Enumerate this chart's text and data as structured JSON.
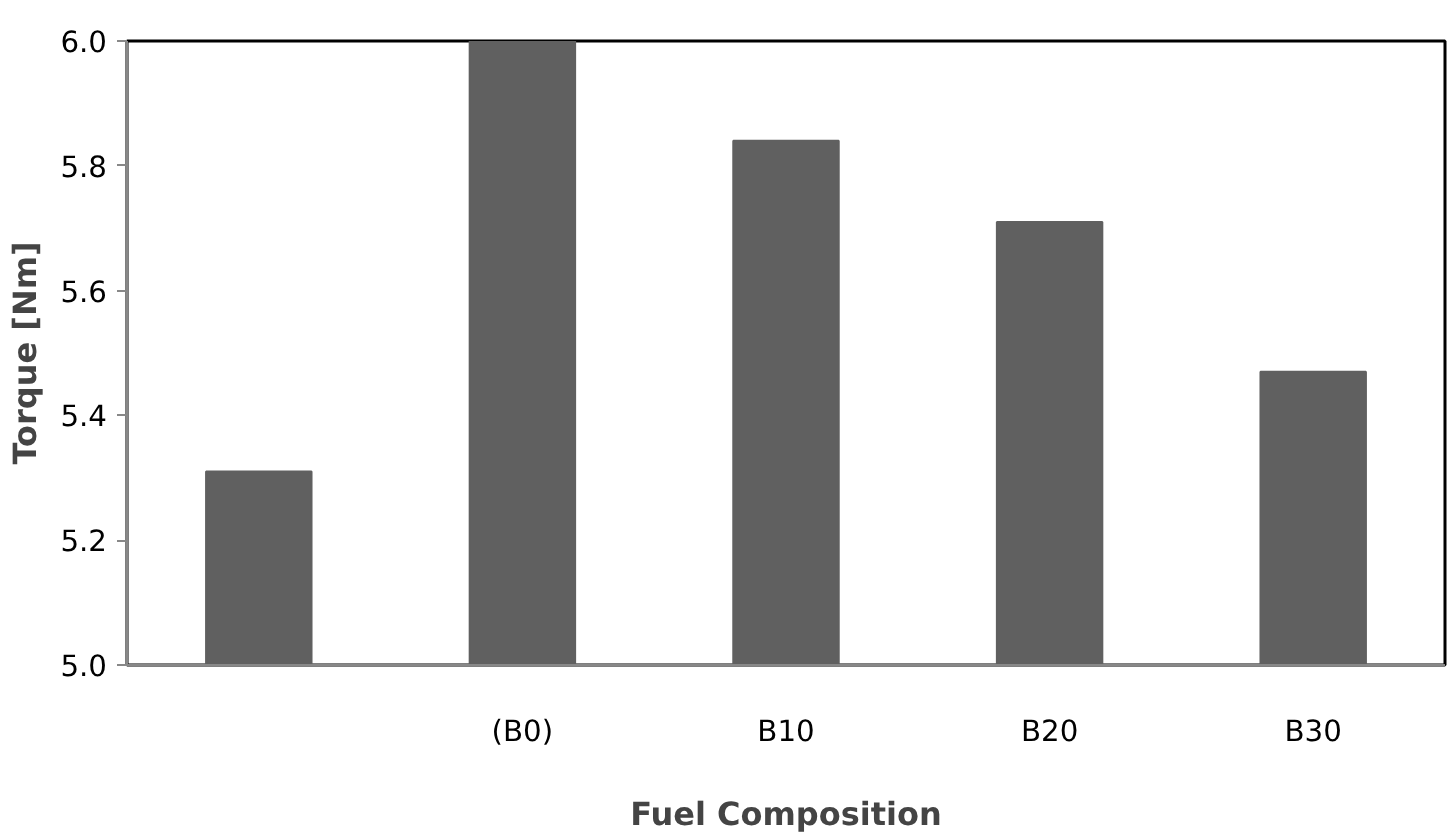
{
  "chart_data": {
    "type": "bar",
    "xlabel": "Fuel Composition",
    "ylabel": "Torque [Nm]",
    "categories": [
      null,
      "(B0)",
      "B10",
      "B20",
      "B30"
    ],
    "values": [
      5.31,
      6.0,
      5.84,
      5.71,
      5.47
    ],
    "color": "#606060",
    "ylim": [
      5.0,
      6.0
    ],
    "yticks": [
      {
        "value": 5.0,
        "label": "5.0"
      },
      {
        "value": 5.2,
        "label": "5.2"
      },
      {
        "value": 5.4,
        "label": "5.4"
      },
      {
        "value": 5.6,
        "label": "5.6"
      },
      {
        "value": 5.8,
        "label": "5.8"
      },
      {
        "value": 6.0,
        "label": "6.0"
      }
    ],
    "grid": false
  }
}
